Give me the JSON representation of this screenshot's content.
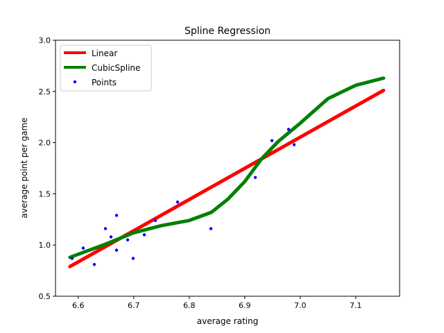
{
  "chart_data": {
    "type": "line",
    "title": "Spline Regression",
    "xlabel": "average rating",
    "ylabel": "average point per game",
    "xlim": [
      6.559,
      7.179
    ],
    "ylim": [
      0.5,
      3.0
    ],
    "xticks": [
      6.6,
      6.7,
      6.8,
      6.9,
      7.0,
      7.1
    ],
    "xtick_labels": [
      "6.6",
      "6.7",
      "6.8",
      "6.9",
      "7.0",
      "7.1"
    ],
    "yticks": [
      0.5,
      1.0,
      1.5,
      2.0,
      2.5,
      3.0
    ],
    "ytick_labels": [
      "0.5",
      "1.0",
      "1.5",
      "2.0",
      "2.5",
      "3.0"
    ],
    "grid": false,
    "legend_position": "top-left",
    "series": [
      {
        "name": "Linear",
        "kind": "line",
        "color": "#ff0000",
        "x": [
          6.585,
          7.15
        ],
        "y": [
          0.79,
          2.51
        ]
      },
      {
        "name": "CubicSpline",
        "kind": "line",
        "color": "#008000",
        "x": [
          6.585,
          6.65,
          6.7,
          6.75,
          6.8,
          6.84,
          6.87,
          6.9,
          6.93,
          6.96,
          7.0,
          7.05,
          7.1,
          7.15
        ],
        "y": [
          0.88,
          1.01,
          1.12,
          1.19,
          1.24,
          1.32,
          1.45,
          1.62,
          1.84,
          2.01,
          2.19,
          2.43,
          2.56,
          2.63
        ]
      },
      {
        "name": "Points",
        "kind": "scatter",
        "color": "#0000ff",
        "x": [
          6.589,
          6.609,
          6.629,
          6.649,
          6.659,
          6.669,
          6.669,
          6.689,
          6.699,
          6.719,
          6.739,
          6.779,
          6.839,
          6.919,
          6.949,
          6.979,
          6.989
        ],
        "y": [
          0.87,
          0.97,
          0.81,
          1.16,
          1.08,
          1.29,
          0.95,
          1.05,
          0.87,
          1.1,
          1.24,
          1.42,
          1.16,
          1.66,
          2.02,
          2.13,
          1.98
        ]
      }
    ]
  }
}
